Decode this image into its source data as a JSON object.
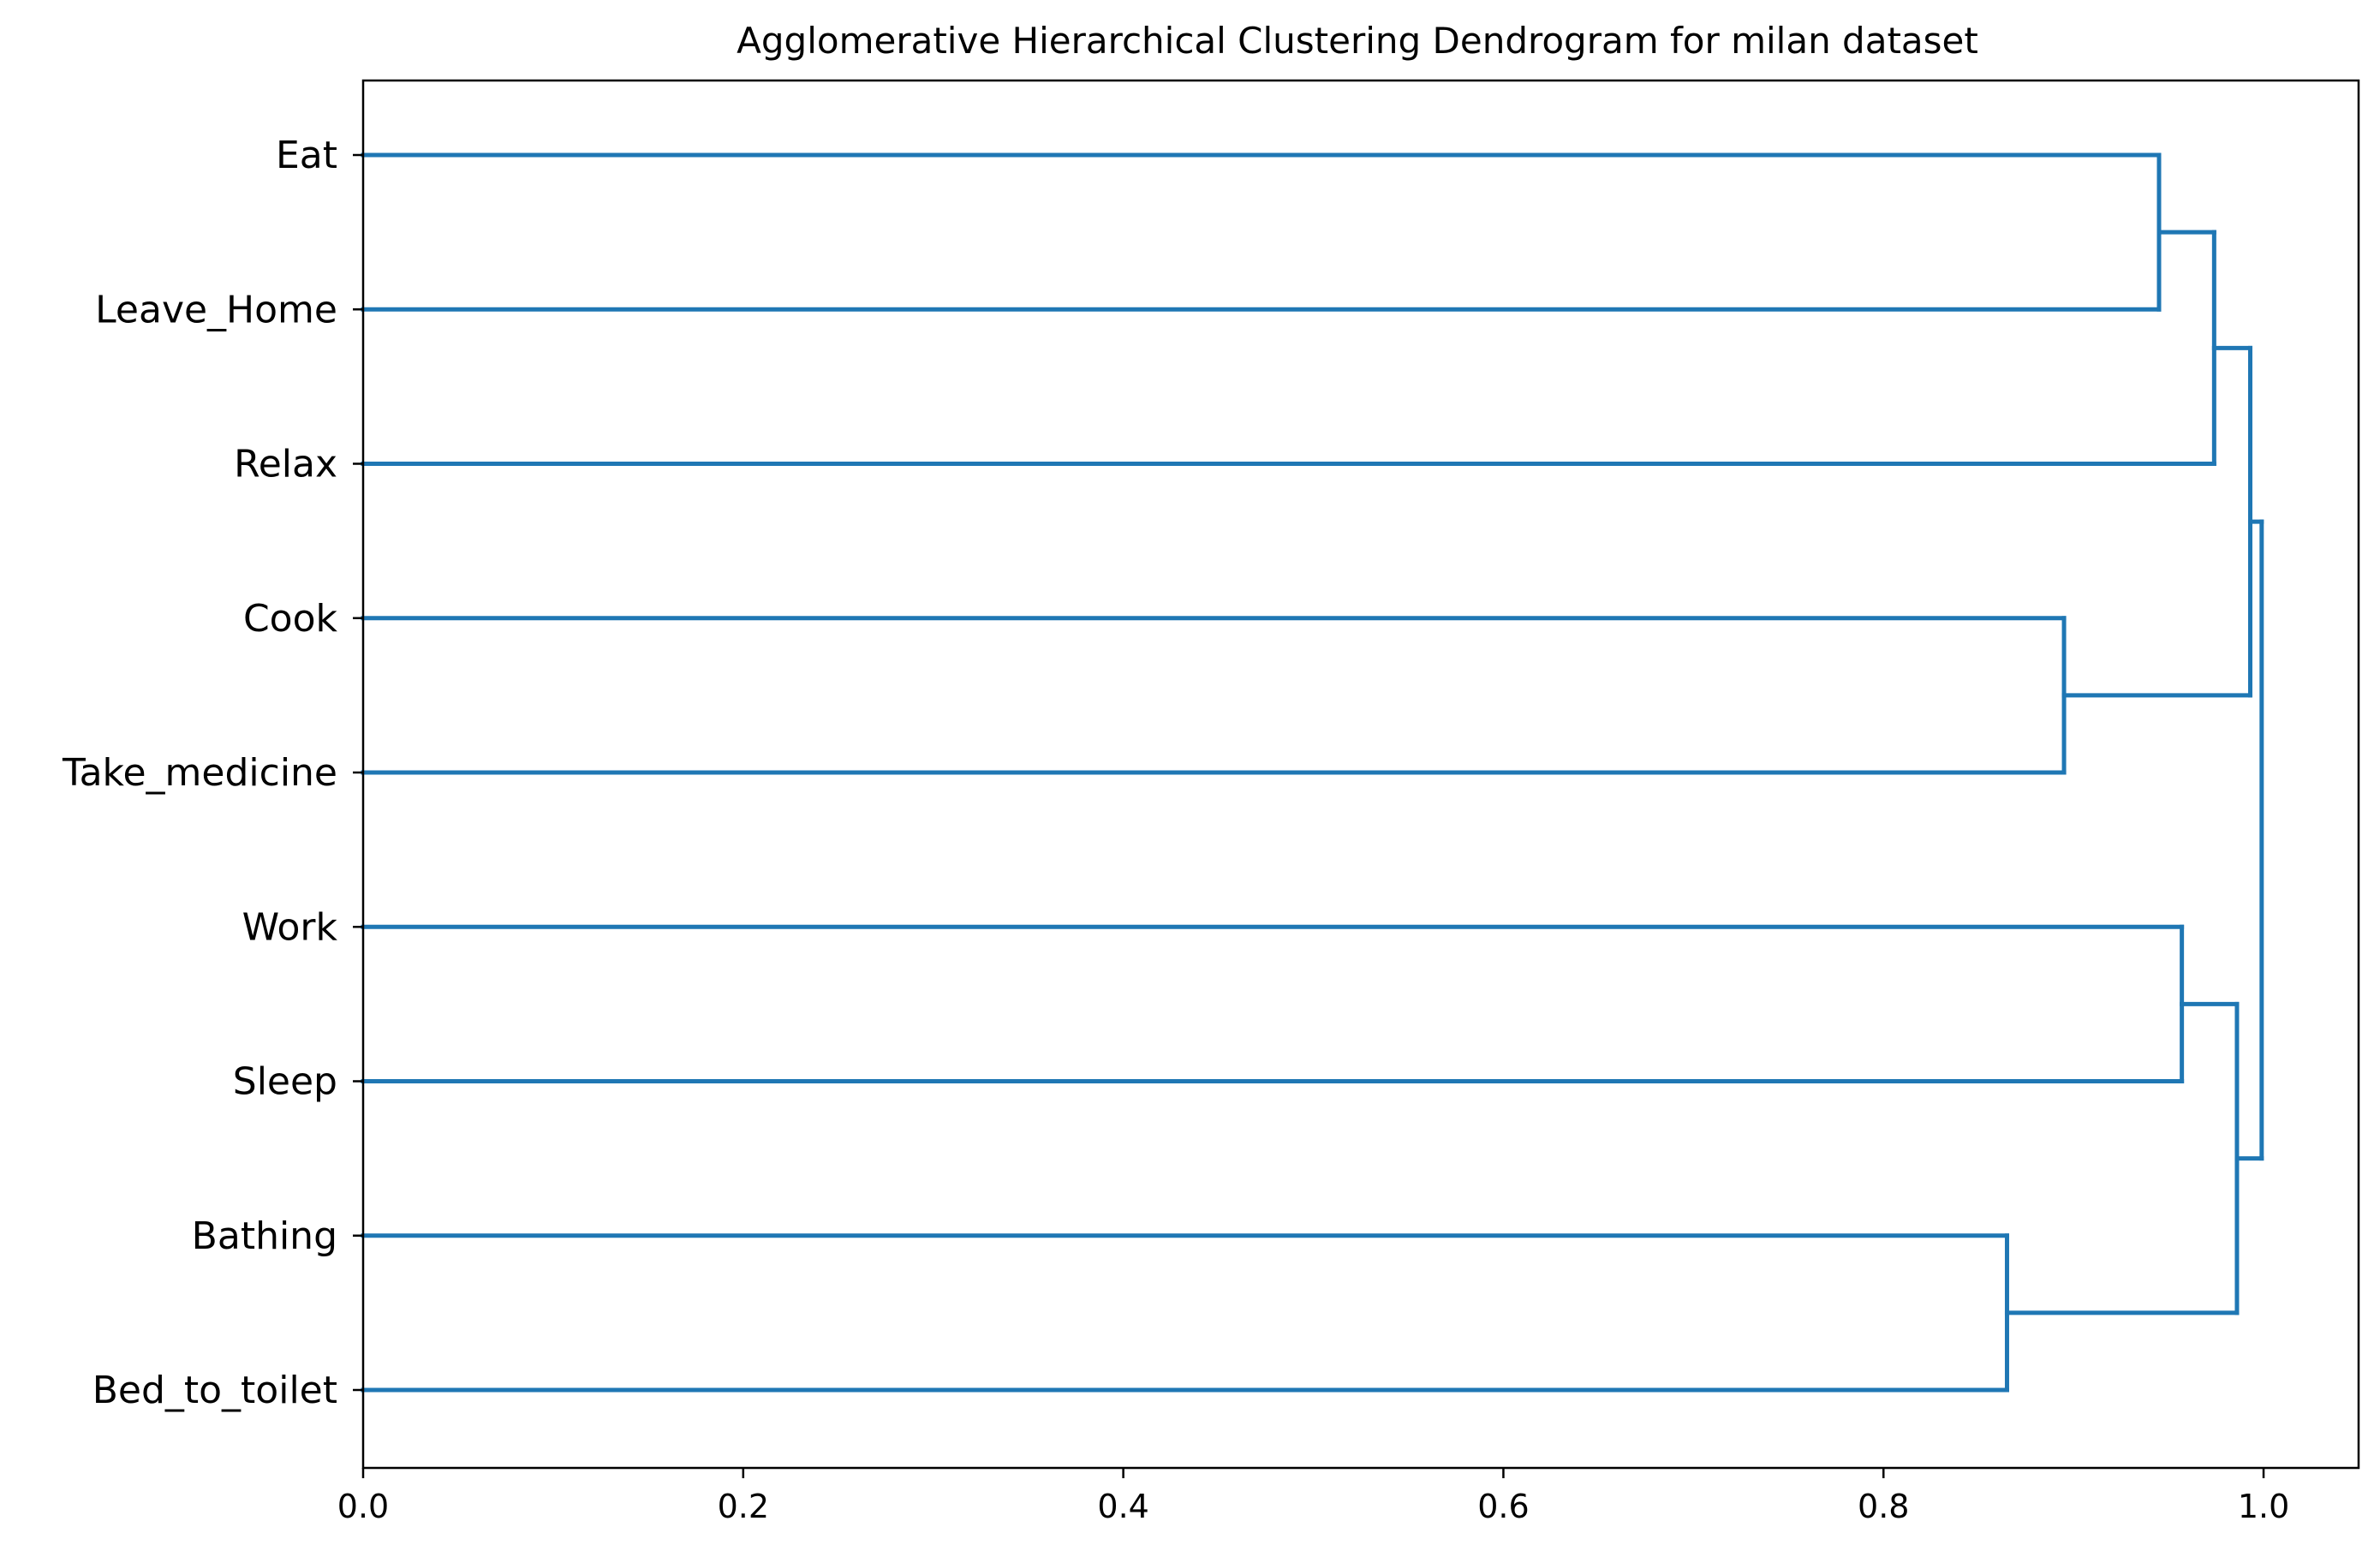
{
  "chart_data": {
    "type": "dendrogram",
    "orientation": "horizontal",
    "title": "Agglomerative Hierarchical Clustering Dendrogram for milan dataset",
    "xlabel": "",
    "ylabel": "",
    "xlim": [
      0,
      1.05
    ],
    "xticks": [
      0.0,
      0.2,
      0.4,
      0.6,
      0.8,
      1.0
    ],
    "xtick_labels": [
      "0.0",
      "0.2",
      "0.4",
      "0.6",
      "0.8",
      "1.0"
    ],
    "leaves": [
      "Eat",
      "Leave_Home",
      "Relax",
      "Cook",
      "Take_medicine",
      "Work",
      "Sleep",
      "Bathing",
      "Bed_to_toilet"
    ],
    "merges": [
      {
        "left": "Eat",
        "right": "Leave_Home",
        "distance": 0.945
      },
      {
        "left": "Eat+Leave_Home",
        "right": "Relax",
        "distance": 0.974
      },
      {
        "left": "Cook",
        "right": "Take_medicine",
        "distance": 0.895
      },
      {
        "left": "Eat+Leave_Home+Relax",
        "right": "Cook+Take_medicine",
        "distance": 0.993
      },
      {
        "left": "Work",
        "right": "Sleep",
        "distance": 0.957
      },
      {
        "left": "Bathing",
        "right": "Bed_to_toilet",
        "distance": 0.865
      },
      {
        "left": "Work+Sleep",
        "right": "Bathing+Bed_to_toilet",
        "distance": 0.986
      },
      {
        "left": "Eat+Leave_Home+Relax+Cook+Take_medicine",
        "right": "Work+Sleep+Bathing+Bed_to_toilet",
        "distance": 0.999
      }
    ],
    "line_color": "#1f77b4",
    "grid": false
  }
}
